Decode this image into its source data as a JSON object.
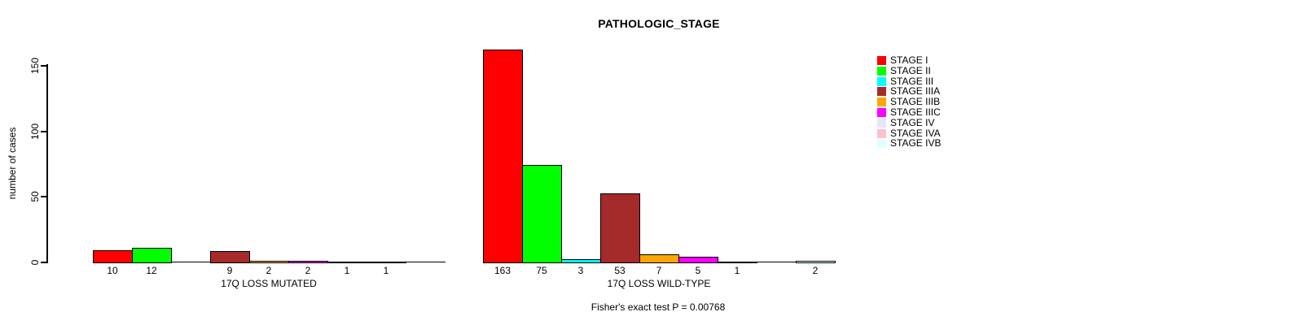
{
  "chart_data": {
    "type": "bar",
    "title": "PATHOLOGIC_STAGE",
    "ylabel": "number of cases",
    "yticks": [
      0,
      50,
      100,
      150
    ],
    "ylim": [
      0,
      170
    ],
    "grid": false,
    "legend_position": "top-right",
    "annotation": "Fisher's exact test P = 0.00768",
    "categories": [
      "17Q LOSS MUTATED",
      "17Q LOSS WILD-TYPE"
    ],
    "series": [
      {
        "name": "STAGE I",
        "color": "#FF0000",
        "values": [
          10,
          163
        ]
      },
      {
        "name": "STAGE II",
        "color": "#00FF00",
        "values": [
          12,
          75
        ]
      },
      {
        "name": "STAGE III",
        "color": "#00FFFF",
        "values": [
          0,
          3
        ]
      },
      {
        "name": "STAGE IIIA",
        "color": "#A52A2A",
        "values": [
          9,
          53
        ]
      },
      {
        "name": "STAGE IIIB",
        "color": "#FFA500",
        "values": [
          2,
          7
        ]
      },
      {
        "name": "STAGE IIIC",
        "color": "#FF00FF",
        "values": [
          2,
          5
        ]
      },
      {
        "name": "STAGE IV",
        "color": "#E6E6FA",
        "values": [
          1,
          1
        ]
      },
      {
        "name": "STAGE IVA",
        "color": "#FFC0CB",
        "values": [
          1,
          0
        ]
      },
      {
        "name": "STAGE IVB",
        "color": "#E0FFFF",
        "values": [
          0,
          2
        ]
      }
    ]
  }
}
